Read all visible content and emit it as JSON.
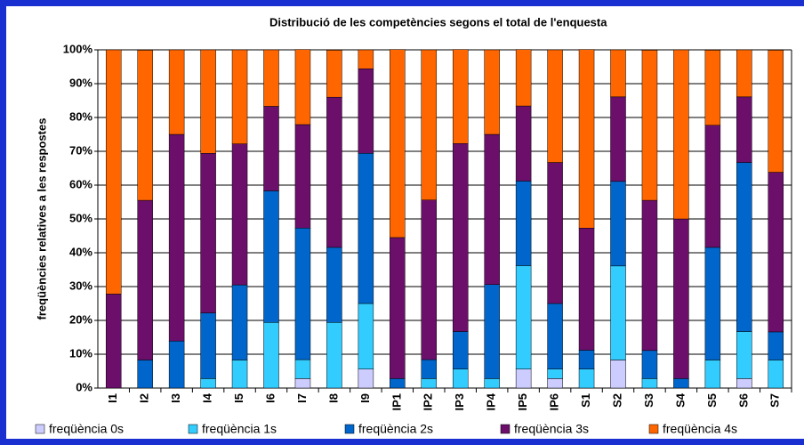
{
  "chart_data": {
    "type": "stacked_bar",
    "title": "Distribució de les competències segons el total de l'enquesta",
    "y_label": "freqüències relatives a les respostes",
    "categories": [
      "I1",
      "I2",
      "I3",
      "I4",
      "I5",
      "I6",
      "I7",
      "I8",
      "I9",
      "IP1",
      "IP2",
      "IP3",
      "IP4",
      "IP5",
      "IP6",
      "S1",
      "S2",
      "S3",
      "S4",
      "S5",
      "S6",
      "S7"
    ],
    "series": [
      {
        "name": "freqüència 0s",
        "color": "#ccccff",
        "values": [
          0,
          0,
          0,
          0,
          0,
          0,
          2.8,
          0,
          5.6,
          0,
          0,
          0,
          0,
          5.6,
          2.8,
          0,
          8.3,
          0,
          0,
          0,
          2.8,
          0
        ]
      },
      {
        "name": "freqüència 1s",
        "color": "#33ccff",
        "values": [
          0,
          0,
          0,
          2.8,
          8.3,
          19.4,
          5.6,
          19.4,
          19.4,
          0,
          2.8,
          5.6,
          2.8,
          30.6,
          2.8,
          5.6,
          27.8,
          2.8,
          0,
          8.3,
          13.9,
          8.3
        ]
      },
      {
        "name": "freqüència 2s",
        "color": "#0066cc",
        "values": [
          0,
          8.3,
          13.9,
          19.4,
          22.2,
          38.9,
          38.9,
          22.2,
          44.4,
          2.8,
          5.6,
          11.1,
          27.8,
          25,
          19.4,
          5.6,
          25,
          8.3,
          2.8,
          33.3,
          50,
          8.3
        ]
      },
      {
        "name": "freqüència 3s",
        "color": "#6b0f6b",
        "values": [
          27.8,
          47.2,
          61.1,
          47.2,
          41.7,
          25,
          30.6,
          44.4,
          25,
          41.7,
          47.2,
          55.6,
          44.4,
          22.2,
          41.7,
          36.1,
          25,
          44.4,
          47.2,
          36.1,
          19.4,
          47.2
        ]
      },
      {
        "name": "freqüència 4s",
        "color": "#ff6600",
        "values": [
          72.2,
          44.4,
          25,
          30.6,
          27.8,
          16.7,
          22.2,
          13.9,
          5.6,
          55.6,
          44.4,
          27.8,
          25,
          16.7,
          33.3,
          52.8,
          13.9,
          44.4,
          50,
          22.2,
          13.9,
          36.1
        ]
      }
    ],
    "ylim": [
      0,
      100
    ],
    "yticks": [
      {
        "value": 0,
        "label": "0%"
      },
      {
        "value": 10,
        "label": "10%"
      },
      {
        "value": 20,
        "label": "20%"
      },
      {
        "value": 30,
        "label": "30%"
      },
      {
        "value": 40,
        "label": "40%"
      },
      {
        "value": 50,
        "label": "50%"
      },
      {
        "value": 60,
        "label": "60%"
      },
      {
        "value": 70,
        "label": "70%"
      },
      {
        "value": 80,
        "label": "80%"
      },
      {
        "value": 90,
        "label": "90%"
      },
      {
        "value": 100,
        "label": "100%"
      }
    ],
    "grid": true,
    "legend": "bottom"
  }
}
